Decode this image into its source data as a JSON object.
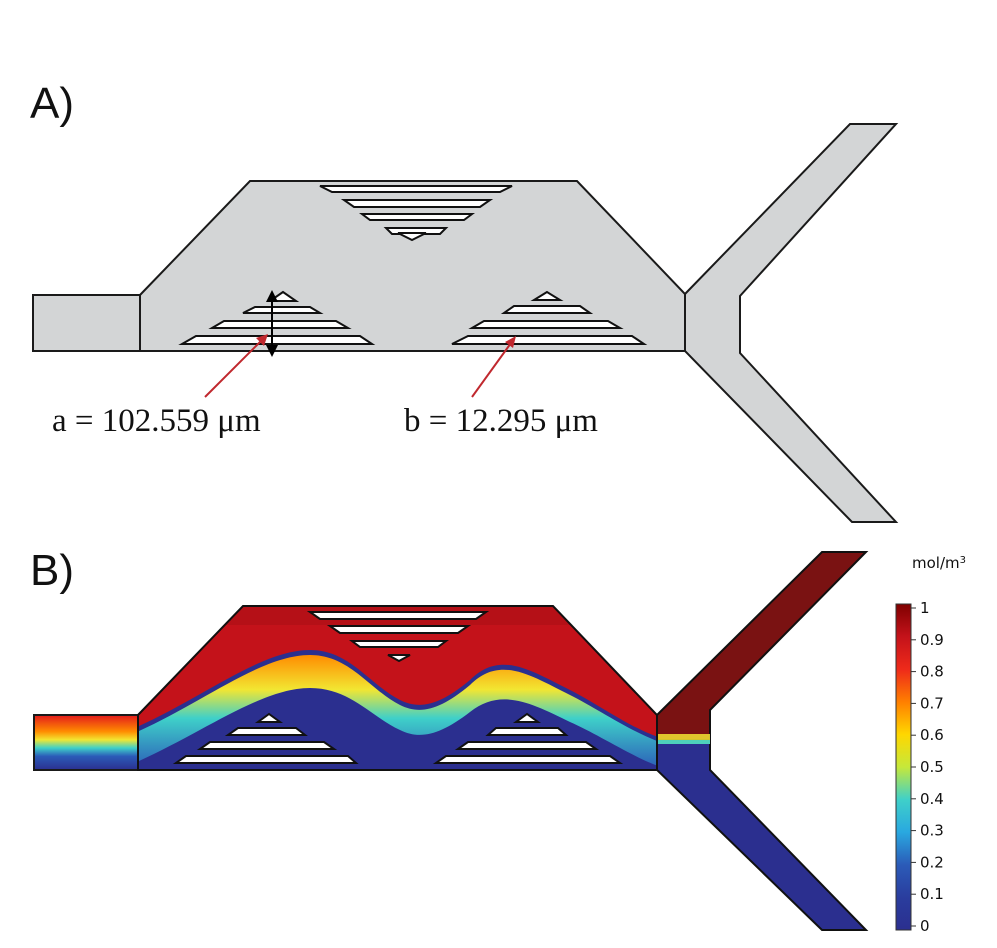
{
  "panels": {
    "a": {
      "label": "A)"
    },
    "b": {
      "label": "B)"
    }
  },
  "annotations": {
    "a_dimension": "a = 102.559 μm",
    "b_dimension": "b = 12.295 μm"
  },
  "colorbar": {
    "unit_base": "mol/m",
    "unit_exponent": "3",
    "ticks": [
      "1",
      "0.9",
      "0.8",
      "0.7",
      "0.6",
      "0.5",
      "0.4",
      "0.3",
      "0.2",
      "0.1",
      "0"
    ],
    "colormap": [
      "#7f0000",
      "#e31a1c",
      "#ff7f00",
      "#ffd700",
      "#c6e83a",
      "#3fd0c9",
      "#29a8e0",
      "#2b5bb8",
      "#2b2f8f"
    ]
  },
  "colors": {
    "channel_fill": "#d3d5d6",
    "arrow_red": "#c0282e",
    "outlet_high": "#7a1212",
    "outlet_low": "#2b2f8f"
  }
}
